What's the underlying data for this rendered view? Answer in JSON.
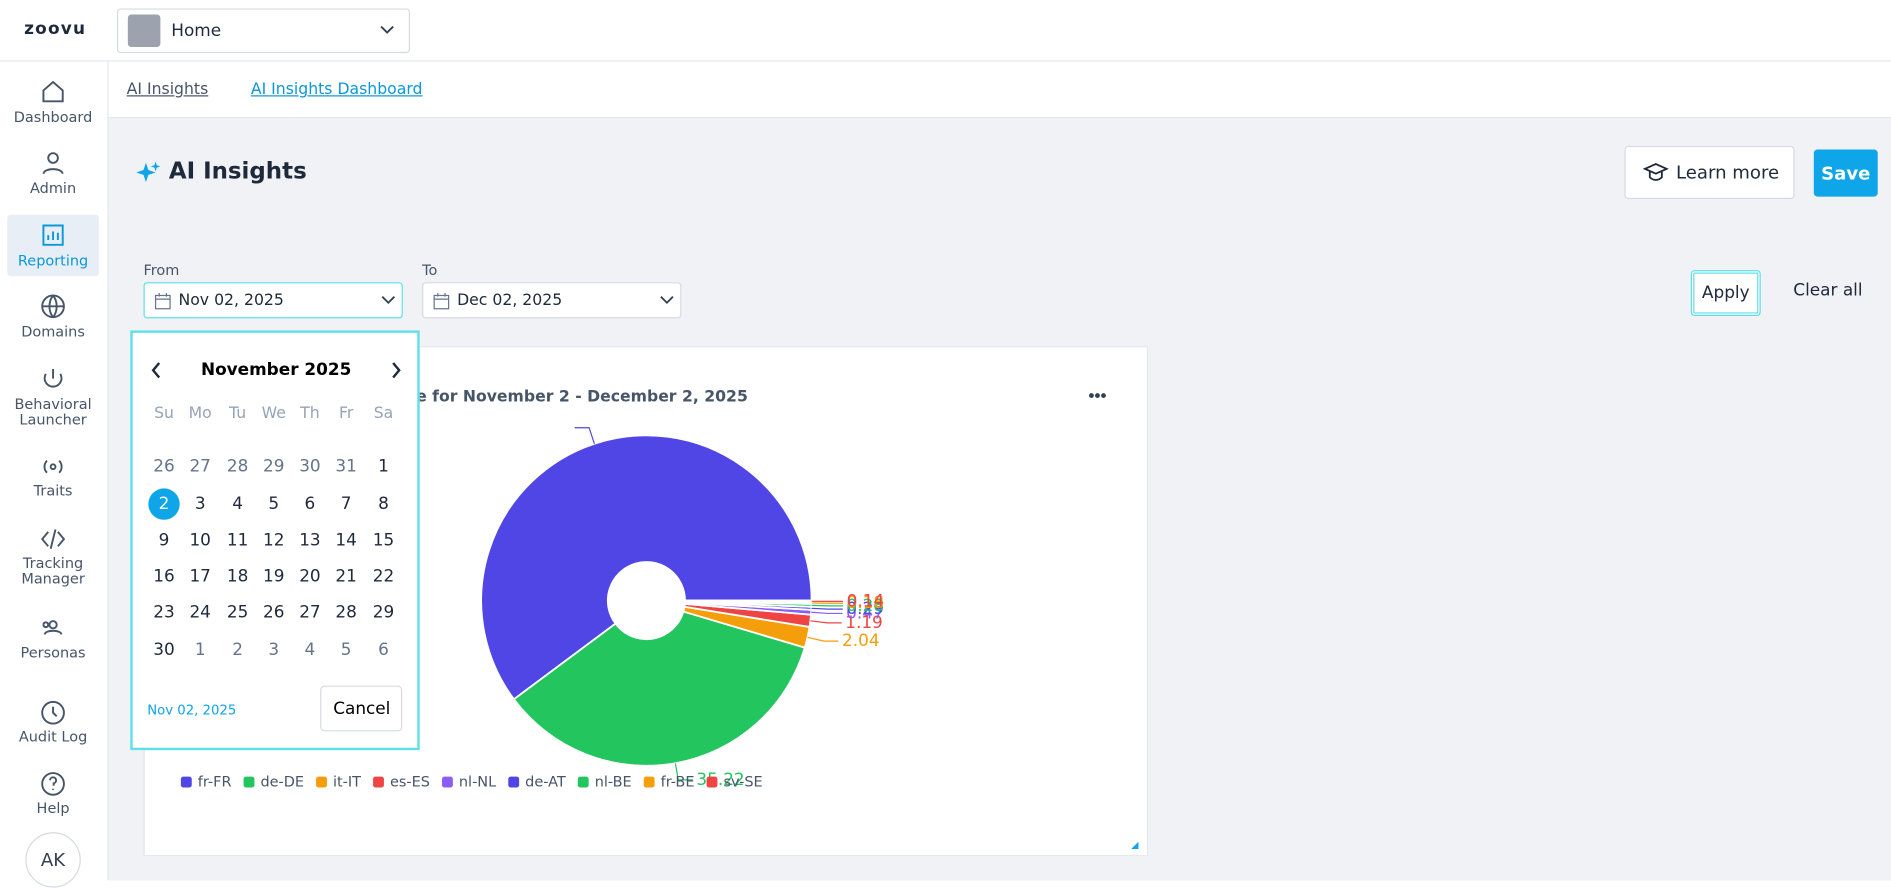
{
  "header": {
    "logo": "zoovu",
    "workspace": "Home"
  },
  "sidebar": [
    "Dashboard",
    "Admin",
    "Reporting",
    "Domains",
    "Behavioral Launcher",
    "Traits",
    "Tracking Manager",
    "Personas",
    "Audit Log",
    "Help"
  ],
  "avatar": "AK",
  "breadcrumbs": [
    "AI Insights",
    "AI Insights Dashboard"
  ],
  "page": {
    "title": "AI Insights",
    "learn_more": "Learn more",
    "save": "Save"
  },
  "filters": {
    "from_label": "From",
    "from_value": "Nov 02, 2025",
    "to_label": "To",
    "to_value": "Dec 02, 2025",
    "apply": "Apply",
    "clear": "Clear all"
  },
  "calendar": {
    "month": "November 2025",
    "weekdays": [
      "Su",
      "Mo",
      "Tu",
      "We",
      "Th",
      "Fr",
      "Sa"
    ],
    "weeks": [
      [
        26,
        27,
        28,
        29,
        30,
        31,
        1
      ],
      [
        2,
        3,
        4,
        5,
        6,
        7,
        8
      ],
      [
        9,
        10,
        11,
        12,
        13,
        14,
        15
      ],
      [
        16,
        17,
        18,
        19,
        20,
        21,
        22
      ],
      [
        23,
        24,
        25,
        26,
        27,
        28,
        29
      ],
      [
        30,
        1,
        2,
        3,
        4,
        5,
        6
      ]
    ],
    "selected_day": 2,
    "selected": "Nov 02, 2025",
    "cancel": "Cancel"
  },
  "chart_data": {
    "type": "pie",
    "title": "e for November 2 - December 2, 2025",
    "categories": [
      "fr-FR",
      "de-DE",
      "it-IT",
      "es-ES",
      "nl-NL",
      "de-AT",
      "nl-BE",
      "fr-BE",
      "sv-SE"
    ],
    "values": [
      60.19,
      35.22,
      2.04,
      1.19,
      0.47,
      0.29,
      0.28,
      0.18,
      0.14
    ],
    "colors": [
      "#4f46e5",
      "#22c55e",
      "#f59e0b",
      "#ef4444",
      "#8b5cf6",
      "#4f46e5",
      "#22c55e",
      "#f59e0b",
      "#ef4444"
    ],
    "legend": "bottom"
  }
}
